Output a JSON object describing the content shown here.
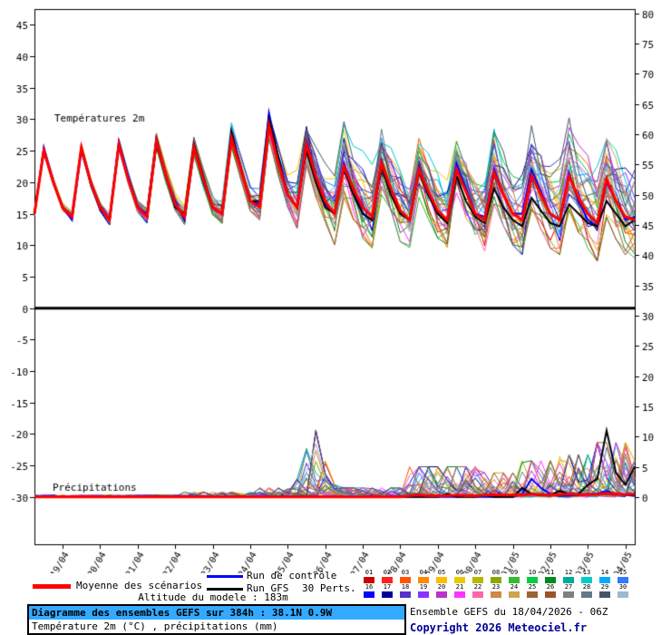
{
  "seed": 11,
  "chart_data": {
    "type": "line",
    "title": "Diagramme des ensembles GEFS sur 384h : 38.1N 0.9W",
    "subtitle": "Température 2m (°C) , précipitations (mm)",
    "run": "Ensemble GEFS du 18/04/2026 - 06Z",
    "time_step_hours": 6,
    "x_range_hours": [
      0,
      384
    ],
    "x_tick_labels": [
      "19/04",
      "20/04",
      "21/04",
      "22/04",
      "23/04",
      "24/04",
      "25/04",
      "26/04",
      "27/04",
      "28/04",
      "29/04",
      "30/04",
      "01/05",
      "02/05",
      "03/05",
      "04/05"
    ],
    "panels": {
      "temperature": {
        "label": "Températures 2m",
        "unit": "°C",
        "ylim": [
          0,
          45
        ],
        "axis_left_ticks": [
          45,
          40,
          35,
          30,
          25,
          20,
          15,
          10,
          5,
          0,
          -5,
          -10,
          -15,
          -20,
          -25,
          -30
        ],
        "mean": [
          15,
          25,
          20,
          16,
          14.5,
          25.5,
          20,
          16,
          14,
          26,
          20.5,
          16,
          14.5,
          26.5,
          21,
          16.5,
          14.5,
          25.5,
          20.5,
          16,
          15,
          27,
          22,
          17,
          16,
          29,
          23,
          18,
          16,
          26,
          21,
          17,
          15,
          22.5,
          19,
          16,
          14.5,
          23,
          19,
          15.5,
          14,
          22,
          18.5,
          15.5,
          14,
          22,
          18.5,
          15,
          14,
          21.5,
          18,
          15,
          14,
          21,
          18,
          15,
          14,
          21,
          17.5,
          15,
          13.5,
          20.5,
          17,
          14.5,
          14
        ],
        "control": [
          15,
          25.5,
          20,
          16,
          14,
          25,
          20,
          16,
          14,
          26.5,
          21,
          16,
          15,
          27,
          21,
          17,
          14,
          26,
          20,
          16,
          15,
          28,
          22.5,
          17,
          16.5,
          31,
          24,
          18,
          16,
          26.5,
          21,
          16.5,
          15,
          23,
          19,
          15,
          14,
          23.5,
          19,
          15,
          14,
          22.5,
          18,
          15,
          14,
          23,
          19,
          15,
          14.5,
          22,
          18,
          15,
          15,
          22,
          18.5,
          15,
          14,
          21.5,
          17,
          14,
          13,
          20,
          17,
          14,
          14.5
        ],
        "gfs": [
          15,
          25,
          20,
          16,
          14.5,
          25.5,
          20,
          16,
          14,
          26,
          20.5,
          16,
          14.5,
          26,
          21,
          16,
          15,
          26,
          21,
          16,
          15,
          28,
          22,
          17,
          17,
          30,
          24,
          18,
          16,
          25,
          20,
          16,
          15,
          22,
          18,
          15,
          14,
          22.5,
          18,
          15,
          14,
          21.5,
          18,
          15,
          13.5,
          21,
          17,
          14.5,
          13.5,
          19,
          16,
          14,
          13,
          17.5,
          15.5,
          13.5,
          13,
          16.5,
          15,
          13.5,
          13,
          17,
          15,
          13,
          14
        ],
        "member_spread": [
          0.5,
          0.5,
          0.5,
          0.5,
          0.6,
          0.6,
          0.6,
          0.6,
          0.7,
          0.7,
          0.7,
          0.7,
          0.9,
          0.9,
          0.9,
          0.9,
          1.1,
          1.1,
          1.1,
          1.1,
          1.4,
          1.4,
          1.4,
          1.4,
          1.8,
          1.8,
          1.8,
          1.8,
          3,
          3,
          3,
          3,
          4.5,
          4.5,
          4.5,
          4.5,
          4.5,
          4.5,
          4.5,
          4.5,
          4,
          4,
          4,
          4,
          4,
          4,
          4,
          4,
          4.5,
          4.5,
          4.5,
          4.5,
          5,
          5,
          5,
          5,
          5,
          5,
          5,
          5,
          5.5,
          5.5,
          5.5,
          5.5,
          5.5
        ]
      },
      "precipitation": {
        "label": "Précipitations",
        "unit": "mm",
        "ylim": [
          0,
          30
        ],
        "axis_right_ticks": [
          80,
          75,
          70,
          65,
          60,
          55,
          50,
          45,
          40,
          35,
          30,
          25,
          20,
          15,
          10,
          5,
          0
        ],
        "mean": [
          0,
          0,
          0,
          0,
          0,
          0,
          0,
          0,
          0,
          0,
          0,
          0,
          0,
          0,
          0,
          0,
          0,
          0,
          0,
          0,
          0,
          0,
          0,
          0,
          0,
          0,
          0,
          0,
          0,
          0,
          0,
          0,
          0,
          0,
          0,
          0,
          0,
          0,
          0,
          0,
          0.2,
          0.3,
          0.2,
          0.2,
          0.2,
          0.3,
          0.2,
          0.2,
          0.3,
          0.4,
          0.3,
          0.3,
          0.3,
          0.5,
          0.4,
          0.3,
          0.4,
          0.5,
          0.4,
          0.4,
          0.4,
          0.6,
          0.5,
          0.4,
          0.5
        ],
        "control": [
          0,
          0,
          0,
          0,
          0,
          0,
          0,
          0,
          0,
          0,
          0,
          0,
          0,
          0,
          0,
          0,
          0,
          0,
          0,
          0,
          0,
          0,
          0,
          0,
          0,
          0,
          0,
          0,
          0,
          0,
          0,
          0,
          0,
          0,
          0,
          0,
          0,
          0,
          0,
          0,
          0,
          0,
          0,
          0,
          0,
          0,
          0,
          0,
          0,
          0,
          0,
          0,
          0.5,
          3,
          1.5,
          0.5,
          0.2,
          0.2,
          0.3,
          0.5,
          0.5,
          1,
          0.5,
          0.3,
          0.2
        ],
        "gfs": [
          0,
          0,
          0,
          0,
          0,
          0,
          0,
          0,
          0,
          0,
          0,
          0,
          0,
          0,
          0,
          0,
          0,
          0,
          0,
          0,
          0,
          0,
          0,
          0,
          0,
          0,
          0,
          0,
          0,
          0,
          0,
          0,
          0,
          0,
          0,
          0,
          0,
          0,
          0,
          0,
          0,
          0,
          0,
          0,
          0.5,
          0,
          0,
          0,
          0.3,
          0,
          0,
          0,
          1.5,
          0.5,
          0.3,
          0.3,
          1,
          0.5,
          0.5,
          2,
          3,
          11,
          4,
          2,
          5
        ],
        "member_max": [
          0.3,
          0.3,
          0.3,
          0.3,
          0.3,
          0.3,
          0.3,
          0.3,
          0.3,
          0.3,
          0.3,
          0.3,
          0.3,
          0.3,
          0.3,
          0.3,
          0.8,
          0.8,
          0.8,
          0.8,
          0.8,
          0.8,
          0.8,
          0.8,
          1.5,
          1.5,
          1.5,
          1.5,
          3,
          8,
          11,
          6,
          2,
          1.5,
          1.5,
          1.5,
          1.5,
          1.5,
          1.5,
          1.5,
          5,
          5,
          5,
          5,
          5,
          5,
          5,
          5,
          4,
          4,
          4,
          4,
          6,
          6,
          6,
          6,
          7,
          7,
          7,
          7,
          9,
          9,
          9,
          9,
          6
        ]
      }
    }
  },
  "legend": {
    "mean_label": "Moyenne des scénarios",
    "control_label": "Run de contrôle",
    "gfs_label": "Run GFS",
    "perts_label": "30 Perts.",
    "mean_color": "#ff0000",
    "control_color": "#0000ff",
    "gfs_color": "#000000",
    "member_numbers": [
      "01",
      "02",
      "03",
      "04",
      "05",
      "06",
      "07",
      "08",
      "09",
      "10",
      "11",
      "12",
      "13",
      "14",
      "15",
      "16",
      "17",
      "18",
      "19",
      "20",
      "21",
      "22",
      "23",
      "24",
      "25",
      "26",
      "27",
      "28",
      "29",
      "30"
    ],
    "member_colors": [
      "#cc0000",
      "#ff2020",
      "#ff5500",
      "#ff8800",
      "#ffbb00",
      "#e6cc00",
      "#b8b800",
      "#88aa00",
      "#33bb33",
      "#00cc44",
      "#008822",
      "#00aa99",
      "#00cccc",
      "#00aaff",
      "#3377ff",
      "#0000ff",
      "#000099",
      "#5533cc",
      "#8833ff",
      "#bb33cc",
      "#ff33ff",
      "#ff66aa",
      "#cc8844",
      "#d2a24c",
      "#996633",
      "#a0522d",
      "#808080",
      "#667788",
      "#445566",
      "#99bbcc"
    ]
  },
  "footer": {
    "altitude": "Altitude du modele : 183m",
    "title": "Diagramme des ensembles GEFS sur 384h : 38.1N 0.9W",
    "subtitle": "Température 2m (°C) , précipitations (mm)",
    "run_info": "Ensemble GEFS du 18/04/2026 - 06Z",
    "copyright": "Copyright 2026 Meteociel.fr",
    "title_bg": "#33aaff",
    "copyright_color": "#000099"
  }
}
